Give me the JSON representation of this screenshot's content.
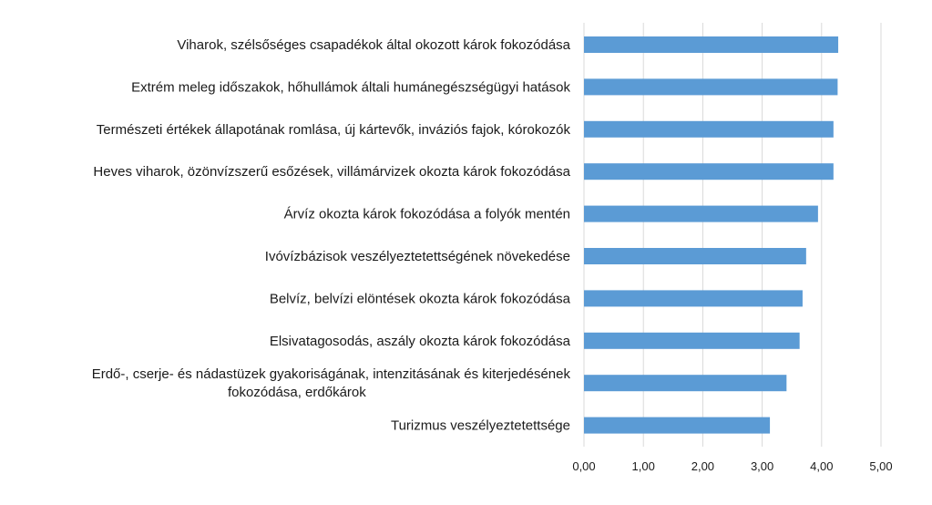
{
  "chart_data": {
    "type": "bar",
    "orientation": "horizontal",
    "title": "",
    "xlabel": "",
    "ylabel": "",
    "xlim": [
      0,
      5
    ],
    "grid": true,
    "legend": "none",
    "bar_color": "#5b9bd5",
    "grid_color": "#d9d9d9",
    "ticks": [
      "0,00",
      "1,00",
      "2,00",
      "3,00",
      "4,00",
      "5,00"
    ],
    "tick_values": [
      0,
      1,
      2,
      3,
      4,
      5
    ],
    "categories": [
      [
        "Viharok, szélsőséges csapadékok által okozott károk fokozódása"
      ],
      [
        "Extrém meleg időszakok, hőhullámok általi humánegészségügyi hatások"
      ],
      [
        "Természeti értékek állapotának romlása, új kártevők, inváziós fajok, kórokozók"
      ],
      [
        "Heves viharok, özönvízszerű esőzések, villámárvizek okozta károk fokozódása"
      ],
      [
        "Árvíz okozta károk fokozódása a folyók mentén"
      ],
      [
        "Ivóvízbázisok veszélyeztetettségének növekedése"
      ],
      [
        "Belvíz, belvízi elöntések okozta károk fokozódása"
      ],
      [
        "Elsivatagosodás, aszály  okozta károk fokozódása"
      ],
      [
        "Erdő-, cserje- és nádastüzek gyakoriságának, intenzitásának és kiterjedésének",
        "fokozódása, erdőkárok"
      ],
      [
        "Turizmus veszélyeztetettsége"
      ]
    ],
    "values": [
      4.28,
      4.27,
      4.2,
      4.2,
      3.94,
      3.74,
      3.68,
      3.63,
      3.41,
      3.13
    ]
  }
}
